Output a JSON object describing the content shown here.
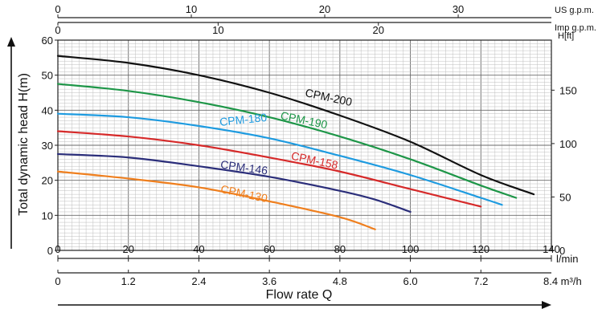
{
  "chart_data": {
    "type": "line",
    "title": "",
    "xlabel": "Flow rate Q",
    "ylabel": "Total dynamic head H(m)",
    "grid": true,
    "axes": {
      "flow_lmin": {
        "unit": "l/min",
        "ticks": [
          "0",
          "20",
          "40",
          "60",
          "80",
          "100",
          "120",
          "140"
        ],
        "range": [
          0,
          140
        ]
      },
      "flow_m3h": {
        "unit": "8.4 m³/h",
        "ticks": [
          "0",
          "1.2",
          "2.4",
          "3.6",
          "4.8",
          "6.0",
          "7.2"
        ]
      },
      "us_gpm": {
        "unit": "US g.p.m.",
        "ticks": [
          "0",
          "10",
          "20",
          "30"
        ]
      },
      "imp_gpm": {
        "unit": "Imp g.p.m.",
        "ticks": [
          "0",
          "10",
          "20"
        ]
      },
      "head_m": {
        "ticks": [
          "0",
          "10",
          "20",
          "30",
          "40",
          "50",
          "60"
        ],
        "range": [
          0,
          60
        ]
      },
      "head_ft": {
        "unit": "H[ft]",
        "ticks": [
          "0",
          "50",
          "100",
          "150"
        ]
      }
    },
    "series": [
      {
        "name": "CPM-200",
        "color": "#111111",
        "x": [
          0,
          20,
          40,
          60,
          80,
          100,
          120,
          135
        ],
        "y": [
          55.5,
          53.5,
          50,
          45,
          38.5,
          31,
          21.5,
          16
        ]
      },
      {
        "name": "CPM-190",
        "color": "#1e9648",
        "x": [
          0,
          20,
          40,
          60,
          80,
          100,
          120,
          130
        ],
        "y": [
          47.5,
          45.5,
          42.3,
          38,
          32.5,
          26,
          18.5,
          15
        ]
      },
      {
        "name": "CPM-180",
        "color": "#1e9be0",
        "x": [
          0,
          20,
          40,
          60,
          80,
          100,
          120,
          126
        ],
        "y": [
          39,
          38,
          35.5,
          32,
          27,
          21.5,
          15,
          13
        ]
      },
      {
        "name": "CPM-158",
        "color": "#d62a2a",
        "x": [
          0,
          20,
          40,
          60,
          80,
          100,
          120
        ],
        "y": [
          34,
          32.5,
          30,
          26.5,
          22.5,
          17.5,
          12.5
        ]
      },
      {
        "name": "CPM-146",
        "color": "#2b2e7a",
        "x": [
          0,
          20,
          40,
          60,
          80,
          90,
          100
        ],
        "y": [
          27.5,
          26.5,
          24,
          21,
          17,
          14.5,
          11
        ]
      },
      {
        "name": "CPM-130",
        "color": "#ef7f1e",
        "x": [
          0,
          20,
          40,
          60,
          80,
          90
        ],
        "y": [
          22.5,
          20.5,
          18,
          14,
          9.5,
          6
        ]
      }
    ]
  }
}
